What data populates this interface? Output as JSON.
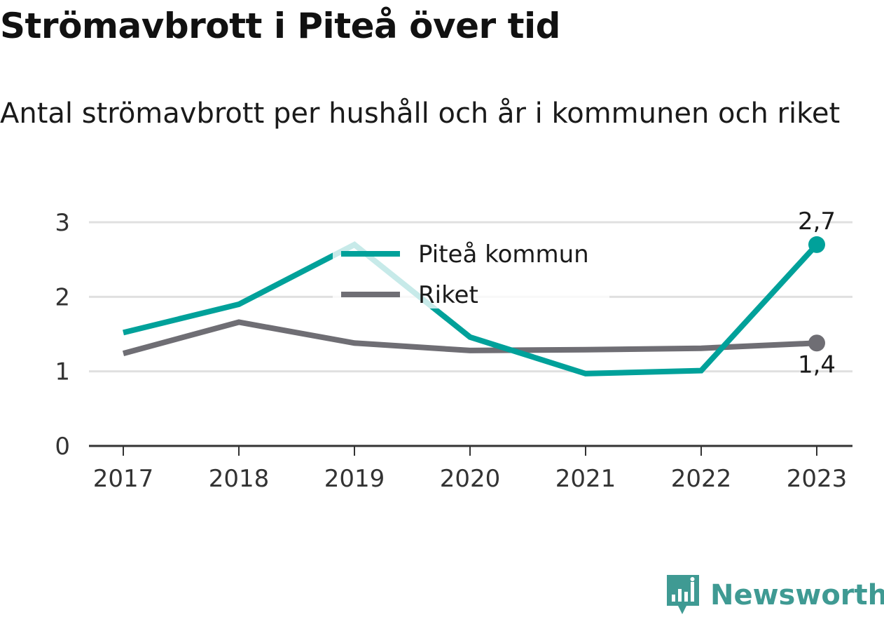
{
  "title": "Strömavbrott i Piteå över tid",
  "subtitle": "Antal strömavbrott per hushåll och år i kommunen och riket",
  "brand": "Newsworthy",
  "colors": {
    "pitea": "#00a19a",
    "riket": "#6f6e74",
    "grid": "#e0e0e0",
    "axis": "#333333",
    "brand": "#3f9a93"
  },
  "chart_data": {
    "type": "line",
    "x": [
      "2017",
      "2018",
      "2019",
      "2020",
      "2021",
      "2022",
      "2023"
    ],
    "ylim": [
      0,
      3
    ],
    "yticks": [
      "0",
      "1",
      "2",
      "3"
    ],
    "grid": true,
    "legend_position": "top-center",
    "series": [
      {
        "name": "Piteå kommun",
        "color": "#00a19a",
        "values": [
          1.52,
          1.9,
          2.7,
          1.46,
          0.97,
          1.01,
          2.7
        ],
        "end_label": "2,7"
      },
      {
        "name": "Riket",
        "color": "#6f6e74",
        "values": [
          1.24,
          1.66,
          1.38,
          1.28,
          1.29,
          1.31,
          1.38
        ],
        "end_label": "1,4"
      }
    ]
  }
}
